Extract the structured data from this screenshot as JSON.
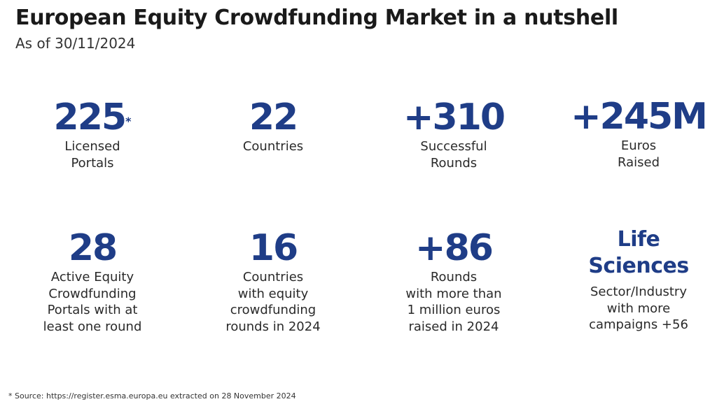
{
  "header": {
    "title": "European Equity Crowdfunding Market in a nutshell",
    "subtitle": "As of 30/11/2024"
  },
  "accent_color": "#1f3d87",
  "stats": [
    {
      "value": "225",
      "mark": "*",
      "label": "Licensed\nPortals"
    },
    {
      "value": "22",
      "label": "Countries"
    },
    {
      "value": "+310",
      "label": "Successful\nRounds"
    },
    {
      "value": "+245M",
      "label": "Euros\nRaised"
    },
    {
      "value": "28",
      "label": "Active Equity\nCrowdfunding\nPortals with at\nleast one round"
    },
    {
      "value": "16",
      "label": "Countries\nwith equity\ncrowdfunding\nrounds in 2024"
    },
    {
      "value": "+86",
      "label": "Rounds\nwith more than\n1 million euros\nraised in 2024"
    },
    {
      "value": "Life\nSciences",
      "label": "Sector/Industry\nwith more\ncampaigns +56"
    }
  ],
  "footnote": "* Source: https://register.esma.europa.eu extracted on 28 November 2024"
}
